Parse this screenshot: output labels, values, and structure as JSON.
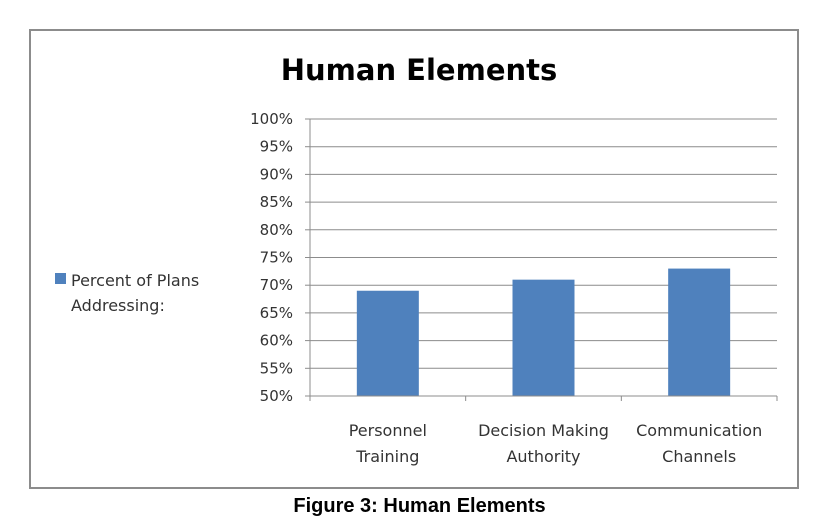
{
  "caption": "Figure 3: Human Elements",
  "chart_data": {
    "type": "bar",
    "title": "Human Elements",
    "categories": [
      [
        "Personnel",
        "Training"
      ],
      [
        "Decision Making",
        "Authority"
      ],
      [
        "Communication",
        "Channels"
      ]
    ],
    "series": [
      {
        "name": "Percent of Plans Addressing:",
        "values": [
          69,
          71,
          73
        ],
        "color": "#4F81BD"
      }
    ],
    "ylim": [
      50,
      100
    ],
    "ytick_step": 5,
    "ytick_format": "percent",
    "grid": true,
    "legend": {
      "position": "left",
      "lines": [
        "Percent of Plans",
        "Addressing:"
      ]
    }
  }
}
